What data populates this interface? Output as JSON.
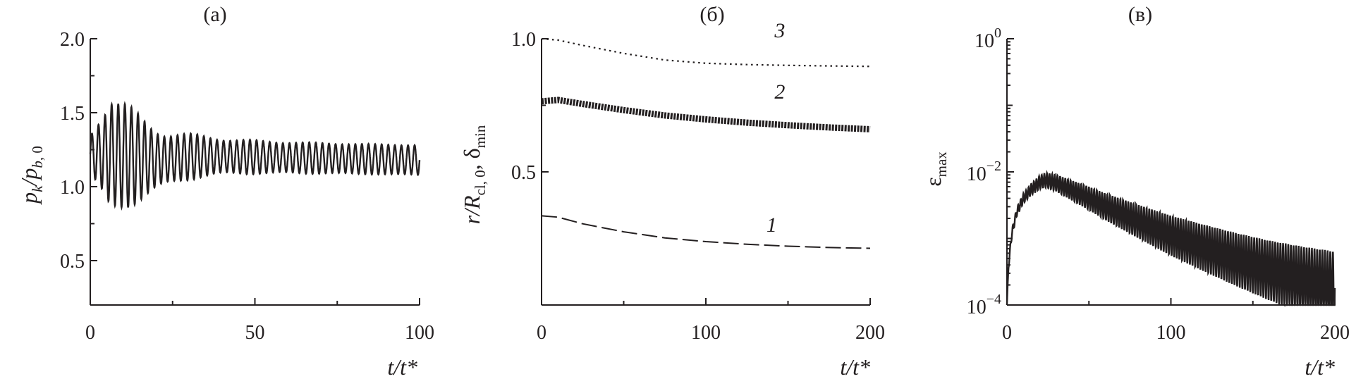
{
  "chart_data": [
    {
      "panel": "(а)",
      "type": "line",
      "ylabel": "p_k/p_b, 0",
      "ylabel_parts": {
        "main1": "p",
        "sub1": "k",
        "slash": "/",
        "main2": "p",
        "sub2": "b",
        "sub2b": ", 0"
      },
      "xlabel": "t/t*",
      "xlim": [
        0,
        100
      ],
      "ylim": [
        0.2,
        2.0
      ],
      "xticks": [
        0,
        50,
        100
      ],
      "yticks": [
        0.5,
        1.0,
        1.5,
        2.0
      ],
      "xtick_labels": [
        "0",
        "50",
        "100"
      ],
      "ytick_labels": [
        "0.5",
        "1.0",
        "1.5",
        "2.0"
      ],
      "series": [
        {
          "period": 2.0,
          "mean_start": 1.22,
          "mean_end": 1.18,
          "amp_peak": 0.42,
          "amp_end": 0.1,
          "peak_t": 6,
          "color": "#231f20"
        }
      ]
    },
    {
      "panel": "(б)",
      "type": "line",
      "ylabel": "r/R_cl, 0, δ_min",
      "ylabel_parts": {
        "main1": "r",
        "slash": "/",
        "main2": "R",
        "sub2": "cl, 0",
        "sep": ", δ",
        "sub3": "min"
      },
      "xlabel": "t/t*",
      "xlim": [
        0,
        200
      ],
      "ylim": [
        0.0,
        1.0
      ],
      "xticks": [
        0,
        100,
        200
      ],
      "yticks": [
        0.5,
        1.0
      ],
      "xtick_labels": [
        "0",
        "100",
        "200"
      ],
      "ytick_labels": [
        "0.5",
        "1.0"
      ],
      "series": [
        {
          "name": "1",
          "style": "dashed",
          "x": [
            0,
            10,
            25,
            50,
            75,
            100,
            125,
            150,
            175,
            200
          ],
          "y": [
            0.335,
            0.33,
            0.305,
            0.275,
            0.252,
            0.238,
            0.228,
            0.221,
            0.216,
            0.213
          ]
        },
        {
          "name": "2",
          "style": "thick",
          "x": [
            0,
            10,
            25,
            50,
            75,
            100,
            125,
            150,
            175,
            200
          ],
          "y": [
            0.765,
            0.77,
            0.755,
            0.732,
            0.712,
            0.697,
            0.685,
            0.675,
            0.667,
            0.66
          ]
        },
        {
          "name": "3",
          "style": "dotted",
          "x": [
            0,
            10,
            25,
            50,
            75,
            100,
            125,
            150,
            175,
            200
          ],
          "y": [
            1.0,
            0.995,
            0.975,
            0.945,
            0.92,
            0.908,
            0.903,
            0.9,
            0.898,
            0.896
          ]
        }
      ],
      "annotations": [
        {
          "text": "3",
          "x": 145,
          "y": 1.005
        },
        {
          "text": "2",
          "x": 145,
          "y": 0.775
        },
        {
          "text": "1",
          "x": 140,
          "y": 0.275
        }
      ]
    },
    {
      "panel": "(в)",
      "type": "line",
      "ylabel": "ε_max",
      "ylabel_parts": {
        "main1": "ε",
        "sub1": "max"
      },
      "xlabel": "t/t*",
      "yscale": "log",
      "xlim": [
        0,
        200
      ],
      "ylim": [
        0.0001,
        1
      ],
      "xticks": [
        0,
        100,
        200
      ],
      "yticks": [
        0.0001,
        0.01,
        1
      ],
      "xtick_labels": [
        "0",
        "100",
        "200"
      ],
      "ytick_labels": [
        {
          "base": "10",
          "exp": "−4"
        },
        {
          "base": "10",
          "exp": "−2"
        },
        {
          "base": "10",
          "exp": "0"
        }
      ],
      "series": [
        {
          "x": [
            0,
            1,
            3,
            6,
            10,
            15,
            20,
            24,
            30,
            40,
            50,
            60,
            80,
            100,
            120,
            140,
            160,
            180,
            200
          ],
          "y": [
            0.0001,
            0.0004,
            0.0012,
            0.0025,
            0.004,
            0.0055,
            0.007,
            0.0075,
            0.0068,
            0.0052,
            0.004,
            0.003,
            0.0018,
            0.0011,
            0.00072,
            0.00048,
            0.00033,
            0.00024,
            0.00018
          ],
          "osc_log_amp_max": 0.55,
          "color": "#231f20"
        }
      ]
    }
  ]
}
